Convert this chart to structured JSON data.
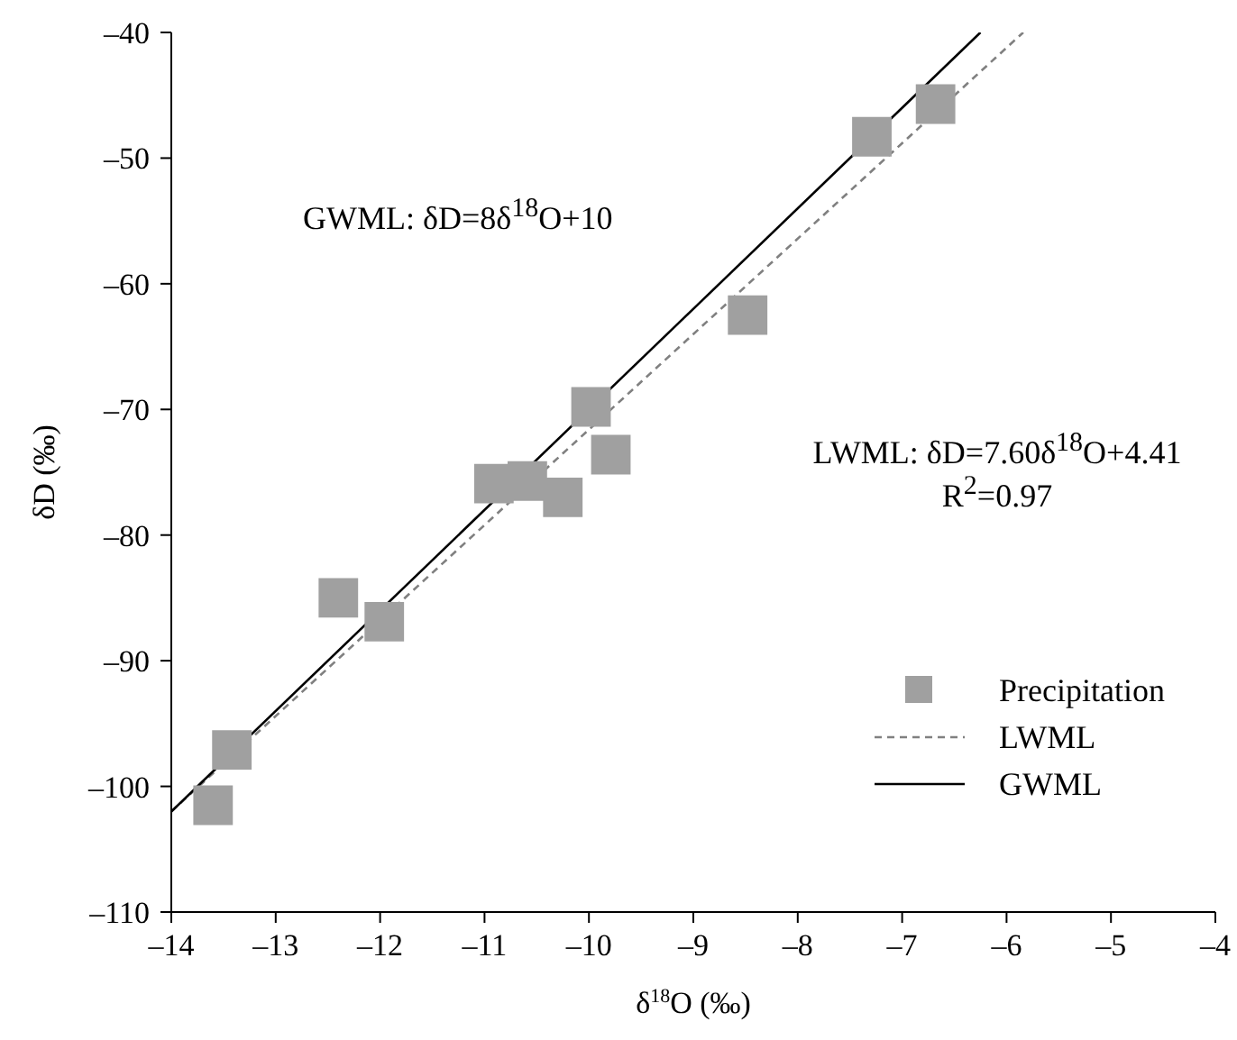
{
  "chart_data": {
    "type": "scatter",
    "xlabel": "δ$^{18}$O (‰)",
    "ylabel": "δD (‰)",
    "xlim": [
      -14,
      -4
    ],
    "xticks": [
      {
        "value": -14,
        "label": "–14"
      },
      {
        "value": -13,
        "label": "–13"
      },
      {
        "value": -12,
        "label": "–12"
      },
      {
        "value": -11,
        "label": "–11"
      },
      {
        "value": -10,
        "label": "–10"
      },
      {
        "value": -9,
        "label": "–9"
      },
      {
        "value": -8,
        "label": "–8"
      },
      {
        "value": -7,
        "label": "–7"
      },
      {
        "value": -6,
        "label": "–6"
      },
      {
        "value": -5,
        "label": "–5"
      },
      {
        "value": -4,
        "label": "–4"
      }
    ],
    "ylim": [
      -110,
      -40
    ],
    "yticks": [
      {
        "value": -110,
        "label": "–110"
      },
      {
        "value": -100,
        "label": "–100"
      },
      {
        "value": -90,
        "label": "–90"
      },
      {
        "value": -80,
        "label": "–80"
      },
      {
        "value": -70,
        "label": "–70"
      },
      {
        "value": -60,
        "label": "–60"
      },
      {
        "value": -50,
        "label": "–50"
      },
      {
        "value": -40,
        "label": "–40"
      }
    ],
    "grid": false,
    "legend": "bottom right",
    "marker": "square",
    "series": [
      {
        "name": "Precipitation",
        "color": "#a0a0a0",
        "x": [
          -13.6,
          -13.42,
          -12.4,
          -11.96,
          -10.91,
          -10.59,
          -10.25,
          -9.98,
          -9.79,
          -8.48,
          -7.29,
          -6.68
        ],
        "values": [
          -101.5,
          -97.1,
          -85.0,
          -86.9,
          -75.9,
          -75.7,
          -77.0,
          -69.8,
          -73.6,
          -62.5,
          -48.3,
          -45.7
        ]
      },
      {
        "name": "LWML",
        "type": "line",
        "line_style": "dashed",
        "marker": "none",
        "color": "#808080",
        "x": [
          -14,
          -5.84
        ],
        "values": [
          -102,
          -40
        ]
      },
      {
        "name": "GWML",
        "type": "line",
        "line_style": "solid",
        "marker": "none",
        "color": "#000000",
        "x": [
          -14,
          -6.25
        ],
        "values": [
          -102,
          -40
        ]
      }
    ],
    "annotations": [
      "GWML: δD=8δ$^{18}$O+10",
      "LWML: δD=7.60δ$^{18}$O+4.41",
      "R$^{2}$=0.97"
    ]
  }
}
